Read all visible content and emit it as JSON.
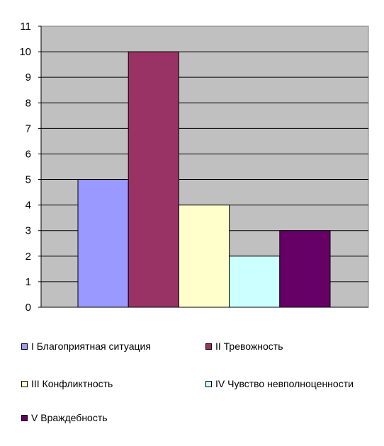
{
  "chart_data": {
    "type": "bar",
    "title": "",
    "xlabel": "",
    "ylabel": "",
    "ylim": [
      0,
      11
    ],
    "yticks": [
      0,
      1,
      2,
      3,
      4,
      5,
      6,
      7,
      8,
      9,
      10,
      11
    ],
    "grid": true,
    "plot_background": "#c0c0c0",
    "legend_position": "bottom",
    "series": [
      {
        "name": "I Благоприятная ситуация",
        "values": [
          5
        ],
        "color": "#9999ff"
      },
      {
        "name": "II Тревожность",
        "values": [
          10
        ],
        "color": "#993366"
      },
      {
        "name": "III Конфликтность",
        "values": [
          4
        ],
        "color": "#ffffcc"
      },
      {
        "name": "IV Чувство невполноценности",
        "values": [
          2
        ],
        "color": "#ccffff"
      },
      {
        "name": "V Враждебность",
        "values": [
          3
        ],
        "color": "#660066"
      }
    ]
  }
}
